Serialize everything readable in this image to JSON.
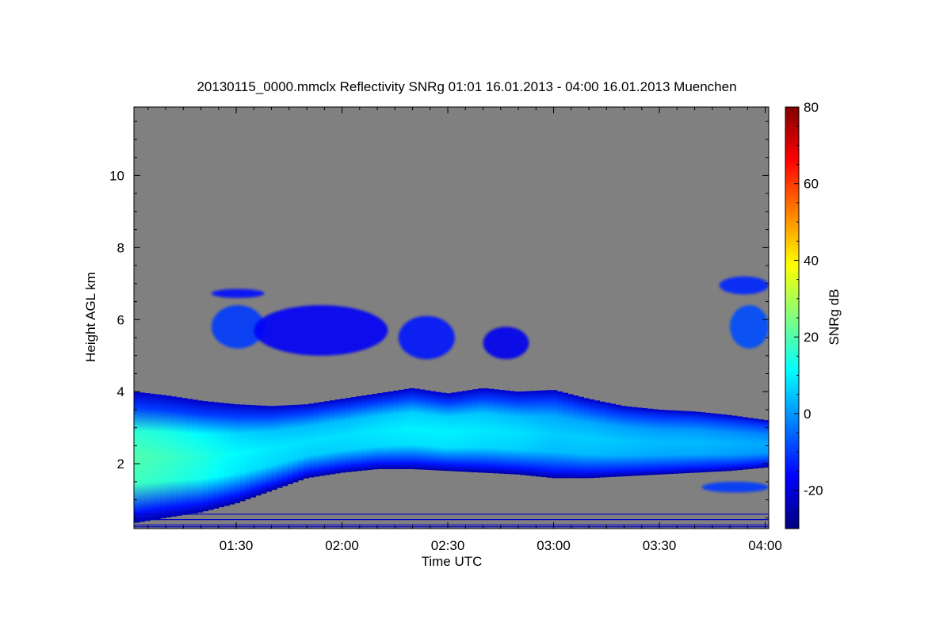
{
  "chart_data": {
    "type": "heatmap",
    "title": "20130115_0000.mmclx Reflectivity SNRg   01:01 16.01.2013 - 04:00 16.01.2013 Muenchen",
    "xlabel": "Time UTC",
    "ylabel": "Height AGL km",
    "colorbar_label": "SNRg dB",
    "x_range_minutes": [
      61,
      241
    ],
    "y_range_km": [
      0.2,
      11.9
    ],
    "x_ticks": [
      {
        "minutes": 90,
        "label": "01:30"
      },
      {
        "minutes": 120,
        "label": "02:00"
      },
      {
        "minutes": 150,
        "label": "02:30"
      },
      {
        "minutes": 180,
        "label": "03:00"
      },
      {
        "minutes": 210,
        "label": "03:30"
      },
      {
        "minutes": 240,
        "label": "04:00"
      }
    ],
    "y_ticks": [
      {
        "value": 2,
        "label": "2"
      },
      {
        "value": 4,
        "label": "4"
      },
      {
        "value": 6,
        "label": "6"
      },
      {
        "value": 8,
        "label": "8"
      },
      {
        "value": 10,
        "label": "10"
      }
    ],
    "colorbar_range": [
      -30,
      80
    ],
    "colorbar_ticks": [
      {
        "value": -20,
        "label": "-20"
      },
      {
        "value": 0,
        "label": "0"
      },
      {
        "value": 20,
        "label": "20"
      },
      {
        "value": 40,
        "label": "40"
      },
      {
        "value": 60,
        "label": "60"
      },
      {
        "value": 80,
        "label": "80"
      }
    ],
    "colormap": "jet",
    "background_color": "#808080",
    "main_cloud_layer": {
      "time_min": [
        61,
        70,
        80,
        90,
        100,
        110,
        120,
        130,
        140,
        150,
        160,
        170,
        180,
        190,
        200,
        210,
        220,
        230,
        241
      ],
      "base_km": [
        0.35,
        0.5,
        0.65,
        0.9,
        1.25,
        1.6,
        1.75,
        1.85,
        1.85,
        1.8,
        1.75,
        1.7,
        1.6,
        1.6,
        1.65,
        1.7,
        1.75,
        1.8,
        1.9
      ],
      "top_km": [
        4.0,
        3.9,
        3.75,
        3.65,
        3.6,
        3.65,
        3.8,
        3.95,
        4.1,
        3.95,
        4.1,
        4.0,
        4.05,
        3.8,
        3.6,
        3.5,
        3.45,
        3.35,
        3.2
      ],
      "core_snr_db": [
        20,
        18,
        15,
        11,
        9,
        8,
        8,
        9,
        10,
        10,
        9,
        8,
        6,
        6,
        5,
        4,
        4,
        3,
        2
      ]
    },
    "upper_cloud_patches": [
      {
        "t0": 83,
        "t1": 98,
        "h_low": 5.2,
        "h_high": 6.4,
        "snr_db": -10
      },
      {
        "t0": 95,
        "t1": 133,
        "h_low": 5.0,
        "h_high": 6.4,
        "snr_db": -17
      },
      {
        "t0": 136,
        "t1": 152,
        "h_low": 4.9,
        "h_high": 6.1,
        "snr_db": -14
      },
      {
        "t0": 160,
        "t1": 173,
        "h_low": 4.9,
        "h_high": 5.8,
        "snr_db": -18
      },
      {
        "t0": 83,
        "t1": 98,
        "h_low": 6.6,
        "h_high": 6.85,
        "snr_db": -15
      },
      {
        "t0": 227,
        "t1": 241,
        "h_low": 6.7,
        "h_high": 7.2,
        "snr_db": -12
      },
      {
        "t0": 230,
        "t1": 241,
        "h_low": 5.2,
        "h_high": 6.4,
        "snr_db": -8
      }
    ],
    "lower_patches": [
      {
        "t0": 222,
        "t1": 241,
        "h_low": 1.2,
        "h_high": 1.5,
        "snr_db": -10
      }
    ],
    "ground_lines_km": [
      0.6,
      0.45,
      0.3,
      0.25
    ]
  }
}
